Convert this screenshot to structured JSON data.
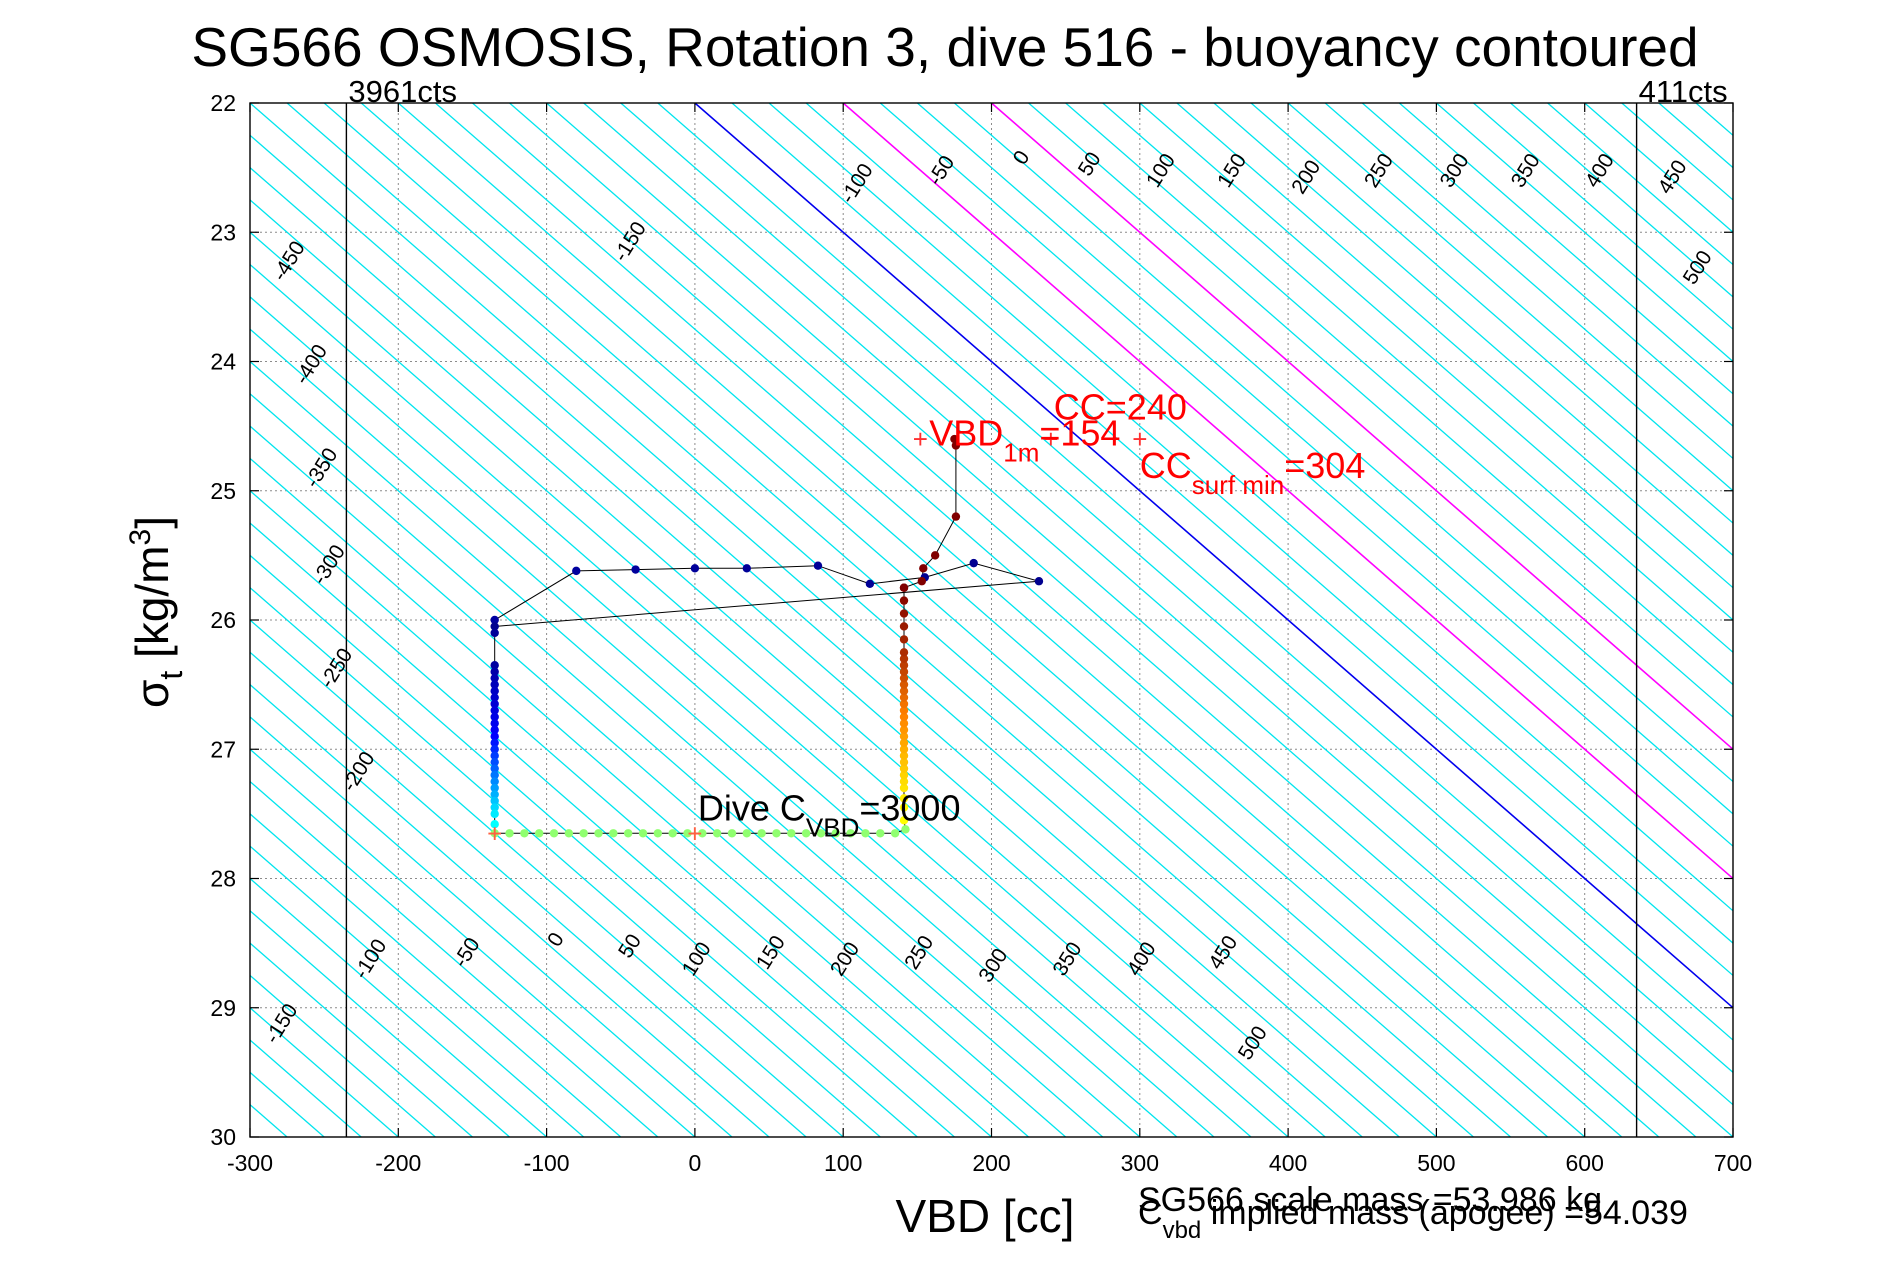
{
  "chart_data": {
    "type": "scatter",
    "title": "SG566 OSMOSIS, Rotation 3, dive 516 - buoyancy contoured",
    "xlabel": "VBD [cc]",
    "ylabel_main": "σ",
    "ylabel_sub": "t",
    "ylabel_unit_pre": " [kg/m",
    "ylabel_unit_sup": "3",
    "ylabel_unit_post": "]",
    "xlim": [
      -300,
      700
    ],
    "ylim": [
      22,
      30
    ],
    "y_reversed": true,
    "grid": true,
    "x_ticks": [
      -300,
      -200,
      -100,
      0,
      100,
      200,
      300,
      400,
      500,
      600,
      700
    ],
    "y_ticks": [
      22,
      23,
      24,
      25,
      26,
      27,
      28,
      29,
      30
    ],
    "vertical_limits": [
      {
        "x": -235,
        "label": "3961cts"
      },
      {
        "x": 635,
        "label": "411cts"
      }
    ],
    "contour_levels": [
      -450,
      -400,
      -350,
      -300,
      -250,
      -200,
      -150,
      -100,
      -50,
      0,
      50,
      100,
      150,
      200,
      250,
      300,
      350,
      400,
      450,
      500
    ],
    "contour_spacing_cc": 25,
    "contour_slope_cc_per_sigma": 100,
    "contour_offset_cc": 0,
    "upper_contour_labels": [
      {
        "text": "-450",
        "x": -270,
        "y": 23.25
      },
      {
        "text": "-400",
        "x": -255,
        "y": 24.05
      },
      {
        "text": "-350",
        "x": -248,
        "y": 24.85
      },
      {
        "text": "-300",
        "x": -243,
        "y": 25.6
      },
      {
        "text": "-250",
        "x": -238,
        "y": 26.4
      },
      {
        "text": "-200",
        "x": -223,
        "y": 27.2
      },
      {
        "text": "-150",
        "x": -40,
        "y": 23.1
      },
      {
        "text": "-100",
        "x": 113,
        "y": 22.65
      },
      {
        "text": "-50",
        "x": 170,
        "y": 22.55
      },
      {
        "text": "0",
        "x": 224,
        "y": 22.45
      },
      {
        "text": "50",
        "x": 270,
        "y": 22.5
      },
      {
        "text": "100",
        "x": 318,
        "y": 22.55
      },
      {
        "text": "150",
        "x": 366,
        "y": 22.55
      },
      {
        "text": "200",
        "x": 416,
        "y": 22.6
      },
      {
        "text": "250",
        "x": 465,
        "y": 22.55
      },
      {
        "text": "300",
        "x": 516,
        "y": 22.55
      },
      {
        "text": "350",
        "x": 564,
        "y": 22.55
      },
      {
        "text": "400",
        "x": 614,
        "y": 22.55
      },
      {
        "text": "450",
        "x": 663,
        "y": 22.6
      },
      {
        "text": "500",
        "x": 680,
        "y": 23.3
      }
    ],
    "lower_contour_labels": [
      {
        "text": "-150",
        "x": -275,
        "y": 29.15
      },
      {
        "text": "-100",
        "x": -215,
        "y": 28.65
      },
      {
        "text": "-50",
        "x": -150,
        "y": 28.6
      },
      {
        "text": "0",
        "x": -90,
        "y": 28.5
      },
      {
        "text": "50",
        "x": -40,
        "y": 28.55
      },
      {
        "text": "100",
        "x": 5,
        "y": 28.65
      },
      {
        "text": "150",
        "x": 55,
        "y": 28.6
      },
      {
        "text": "200",
        "x": 105,
        "y": 28.65
      },
      {
        "text": "250",
        "x": 155,
        "y": 28.6
      },
      {
        "text": "300",
        "x": 205,
        "y": 28.7
      },
      {
        "text": "350",
        "x": 255,
        "y": 28.65
      },
      {
        "text": "400",
        "x": 305,
        "y": 28.65
      },
      {
        "text": "450",
        "x": 360,
        "y": 28.6
      },
      {
        "text": "500",
        "x": 380,
        "y": 29.3
      }
    ],
    "special_contours": [
      {
        "level": 0,
        "color": "#0000ee"
      },
      {
        "level": 100,
        "color": "#ff00ff"
      },
      {
        "level": 200,
        "color": "#ff00ff"
      }
    ],
    "series": [
      {
        "colors": [
          "#0000a0",
          "#00008f"
        ],
        "x": [
          -135,
          -80,
          -40,
          0,
          35,
          83,
          118,
          155,
          188,
          232
        ],
        "y": [
          26.0,
          25.62,
          25.61,
          25.6,
          25.6,
          25.58,
          25.72,
          25.67,
          25.56,
          25.7
        ]
      },
      {
        "colors": [
          "#00008f",
          "#0000ff",
          "#00ffff"
        ],
        "x": [
          -135,
          -135,
          -135,
          -135,
          -135,
          -135,
          -135,
          -135,
          -135,
          -135,
          -135,
          -135,
          -135,
          -135,
          -135,
          -135,
          -135,
          -135,
          -135,
          -135,
          -135,
          -135,
          -135,
          -135,
          -135,
          -135,
          -135
        ],
        "y": [
          26.05,
          26.1,
          26.35,
          26.4,
          26.45,
          26.5,
          26.55,
          26.6,
          26.65,
          26.7,
          26.75,
          26.8,
          26.85,
          26.9,
          26.95,
          27.0,
          27.05,
          27.1,
          27.15,
          27.2,
          27.25,
          27.3,
          27.35,
          27.4,
          27.45,
          27.5,
          27.58
        ]
      },
      {
        "colors": [
          "#90ff70"
        ],
        "x": [
          -135,
          -125,
          -115,
          -105,
          -95,
          -85,
          -75,
          -65,
          -55,
          -45,
          -35,
          -25,
          -15,
          -5,
          5,
          15,
          25,
          35,
          45,
          55,
          65,
          75,
          85,
          95,
          105,
          115,
          125,
          135,
          142
        ],
        "y": [
          27.65,
          27.65,
          27.65,
          27.65,
          27.65,
          27.65,
          27.65,
          27.65,
          27.65,
          27.65,
          27.65,
          27.65,
          27.65,
          27.65,
          27.65,
          27.65,
          27.65,
          27.65,
          27.65,
          27.65,
          27.65,
          27.65,
          27.65,
          27.65,
          27.65,
          27.65,
          27.65,
          27.65,
          27.62
        ]
      },
      {
        "colors": [
          "#ffff00",
          "#ff8000",
          "#800000"
        ],
        "x": [
          141,
          141,
          141,
          141,
          141,
          141,
          141,
          141,
          141,
          141,
          141,
          141,
          141,
          141,
          141,
          141,
          141,
          141,
          141,
          141,
          141,
          141,
          141,
          141,
          141,
          141,
          141,
          141,
          141,
          141
        ],
        "y": [
          27.55,
          27.45,
          27.38,
          27.3,
          27.25,
          27.2,
          27.15,
          27.1,
          27.05,
          27.0,
          26.95,
          26.9,
          26.85,
          26.8,
          26.75,
          26.7,
          26.65,
          26.6,
          26.55,
          26.5,
          26.45,
          26.4,
          26.35,
          26.3,
          26.25,
          26.15,
          26.05,
          25.95,
          25.85,
          25.75
        ]
      },
      {
        "colors": [
          "#800000"
        ],
        "x": [
          141,
          153,
          154,
          162,
          176,
          176,
          175
        ],
        "y": [
          25.75,
          25.7,
          25.6,
          25.5,
          25.2,
          24.65,
          24.6
        ]
      }
    ],
    "markers": [
      {
        "x": -135,
        "y": 27.65,
        "symbol": "+",
        "color": "#ff6040"
      },
      {
        "x": 0,
        "y": 27.65,
        "symbol": "+",
        "color": "#ff6040"
      },
      {
        "x": 152,
        "y": 24.6,
        "symbol": "+",
        "color": "#ff3030"
      },
      {
        "x": 240,
        "y": 24.6,
        "symbol": "+",
        "color": "#ff3030"
      },
      {
        "x": 300,
        "y": 24.6,
        "symbol": "+",
        "color": "#ff3030"
      }
    ],
    "annotations": [
      {
        "text": "VBD",
        "sub": "1m",
        "post": "=154",
        "x": 158,
        "y": 24.65,
        "color": "#ff0000"
      },
      {
        "text": "CC",
        "sub": "",
        "post": "=240",
        "x": 242,
        "y": 24.45,
        "color": "#ff0000"
      },
      {
        "text": "CC",
        "sub": "surf min",
        "post": "=304",
        "x": 300,
        "y": 24.9,
        "color": "#ff0000"
      },
      {
        "text": "Dive C",
        "sub": "VBD",
        "post": "=3000",
        "x": 2,
        "y": 27.55,
        "color": "#000000"
      }
    ],
    "footer": [
      "SG566 scale mass =53.986 kg",
      "C",
      "vbd",
      " implied mass (apogee) =54.039"
    ]
  },
  "colors": {
    "contour": "#00e5ee",
    "grid": "#8c8c8c",
    "axis": "#000000",
    "connector": "#000000"
  }
}
